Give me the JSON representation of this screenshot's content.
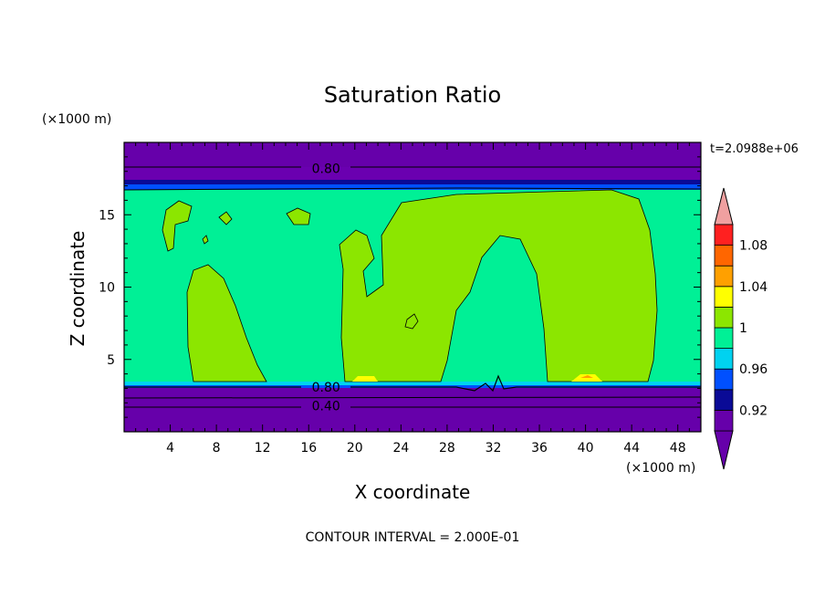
{
  "chart_data": {
    "type": "heatmap",
    "title": "Saturation Ratio",
    "xlabel": "X coordinate",
    "ylabel": "Z coordinate",
    "x_unit": "(×1000 m)",
    "y_unit": "(×1000 m)",
    "xlim": [
      0,
      50
    ],
    "ylim": [
      0,
      20
    ],
    "x_ticks": [
      4,
      8,
      12,
      16,
      20,
      24,
      28,
      32,
      36,
      40,
      44,
      48
    ],
    "y_ticks": [
      5,
      10,
      15
    ],
    "time_label": "t=2.0988e+06",
    "contour_interval_label": "CONTOUR INTERVAL = 2.000E-01",
    "contour_labels": [
      {
        "text": "0.80",
        "x": 17.5,
        "z": 18.2
      },
      {
        "text": "0.80",
        "x": 17.5,
        "z": 3.1
      },
      {
        "text": "0.40",
        "x": 17.5,
        "z": 1.8
      }
    ],
    "colorbar": {
      "levels": [
        0.9,
        0.92,
        0.94,
        0.96,
        0.98,
        1.0,
        1.02,
        1.04,
        1.06,
        1.08,
        1.1
      ],
      "labels": [
        "0.92",
        "0.96",
        "1",
        "1.04",
        "1.08"
      ],
      "colors": [
        "#6600aa",
        "#0a0a96",
        "#0050ff",
        "#00d2f0",
        "#00f096",
        "#8ce600",
        "#ffff00",
        "#ffa000",
        "#ff6600",
        "#ff2020"
      ],
      "under_color": "#6600aa",
      "over_color": "#f0a0a0"
    },
    "regions": {
      "dry_color": "#6600aa",
      "moist_color": "#00f096",
      "supersat_color": "#8ce600"
    }
  }
}
